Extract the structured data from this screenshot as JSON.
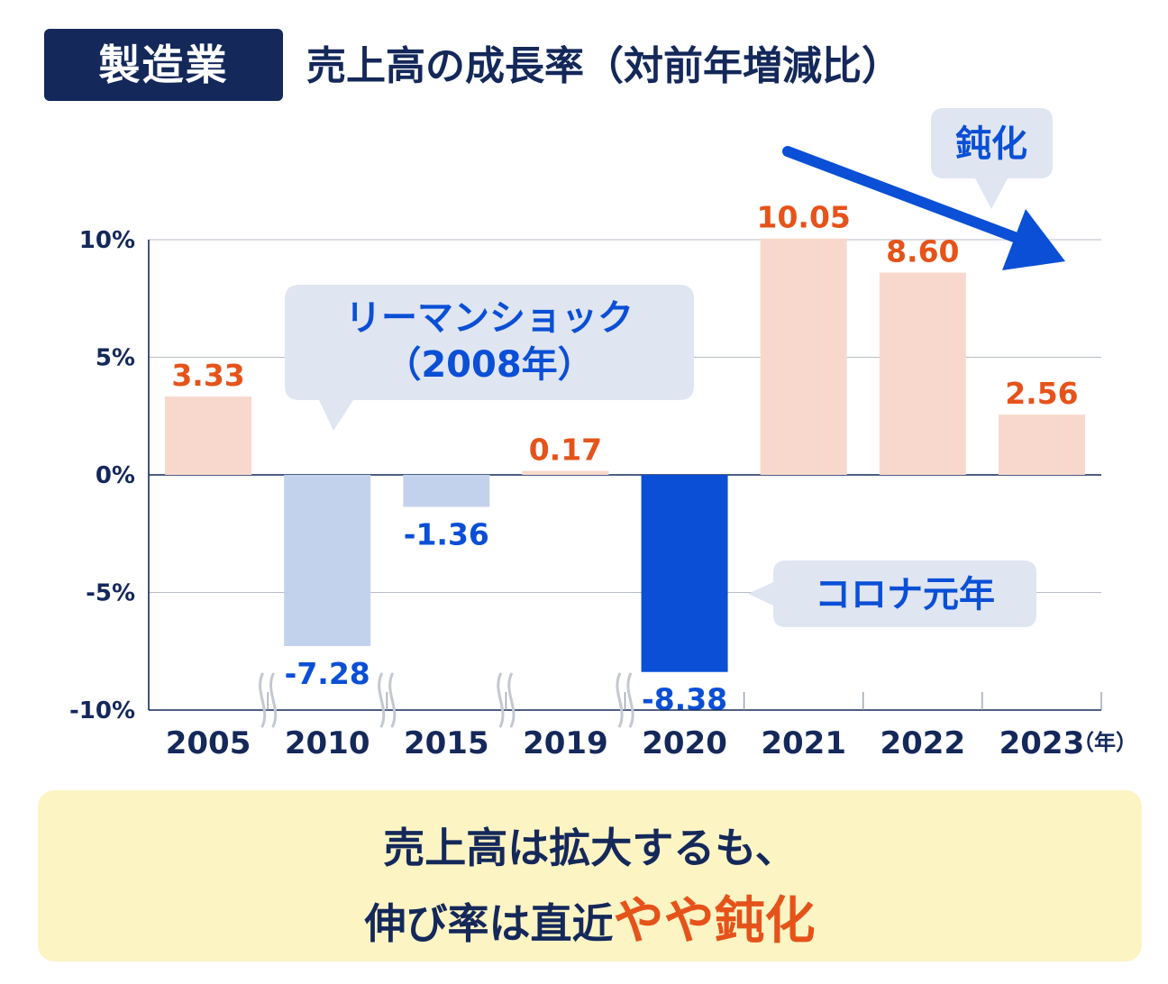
{
  "header": {
    "badge": "製造業",
    "title": "売上高の成長率（対前年増減比）"
  },
  "chart_data": {
    "type": "bar",
    "categories": [
      "2005",
      "2010",
      "2015",
      "2019",
      "2020",
      "2021",
      "2022",
      "2023"
    ],
    "values": [
      3.33,
      -7.28,
      -1.36,
      0.17,
      -8.38,
      10.05,
      8.6,
      2.56
    ],
    "value_labels": [
      "3.33",
      "-7.28",
      "-1.36",
      "0.17",
      "-8.38",
      "10.05",
      "8.60",
      "2.56"
    ],
    "yticks": [
      "10%",
      "5%",
      "0%",
      "-5%",
      "-10%"
    ],
    "ylim": [
      -10,
      10
    ],
    "x_unit": "（年）",
    "grid": true,
    "bar_colors": [
      "#f8d8cd",
      "#c3d2ec",
      "#c3d2ec",
      "#f8d8cd",
      "#0a4fd6",
      "#f8d8cd",
      "#f8d8cd",
      "#f8d8cd"
    ],
    "label_colors": [
      "#e5531b",
      "#0a4fd6",
      "#0a4fd6",
      "#e5531b",
      "#0a4fd6",
      "#e5531b",
      "#e5531b",
      "#e5531b"
    ],
    "axis_breaks_after": [
      "2005",
      "2010",
      "2015",
      "2019"
    ],
    "annotations": {
      "lehman_line1": "リーマンショック",
      "lehman_line2": "（2008年）",
      "corona": "コロナ元年",
      "slowdown": "鈍化"
    }
  },
  "summary": {
    "line1": "売上高は拡大するも、",
    "line2_prefix": "伸び率は直近",
    "line2_highlight": "やや鈍化"
  },
  "colors": {
    "navy": "#14285a",
    "accent_blue": "#0a4fd6",
    "orange": "#e5531b",
    "callout_bg": "#dfe5f1",
    "summary_bg": "#fdf4c4"
  }
}
